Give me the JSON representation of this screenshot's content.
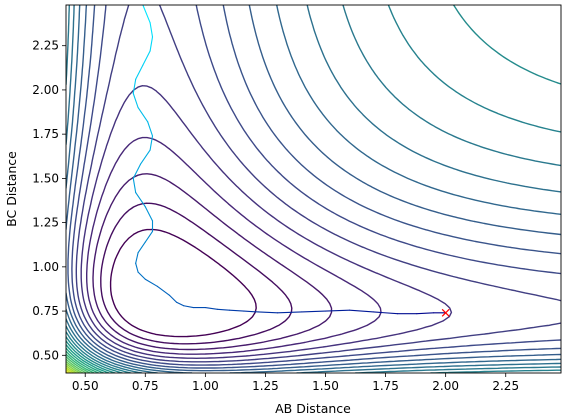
{
  "chart_data": {
    "type": "contour",
    "title": "",
    "xlabel": "AB Distance",
    "ylabel": "BC Distance",
    "xlim": [
      0.42,
      2.48
    ],
    "ylim": [
      0.4,
      2.48
    ],
    "x_ticks": [
      0.5,
      0.75,
      1.0,
      1.25,
      1.5,
      1.75,
      2.0,
      2.25
    ],
    "x_tick_labels": [
      "0.50",
      "0.75",
      "1.00",
      "1.25",
      "1.50",
      "1.75",
      "2.00",
      "2.25"
    ],
    "y_ticks": [
      0.5,
      0.75,
      1.0,
      1.25,
      1.5,
      1.75,
      2.0,
      2.25
    ],
    "y_tick_labels": [
      "0.50",
      "0.75",
      "1.00",
      "1.25",
      "1.50",
      "1.75",
      "2.00",
      "2.25"
    ],
    "grid": false,
    "colormap": "viridis",
    "contour_levels": 28,
    "trajectory": {
      "color_start": "#00e5ff",
      "color_end": "#00008b",
      "x": [
        0.74,
        0.77,
        0.78,
        0.77,
        0.74,
        0.71,
        0.7,
        0.72,
        0.76,
        0.78,
        0.77,
        0.73,
        0.7,
        0.71,
        0.75,
        0.78,
        0.78,
        0.75,
        0.72,
        0.71,
        0.72,
        0.75,
        0.8,
        0.85,
        0.88,
        0.91,
        0.95,
        1.0,
        1.05,
        1.1,
        1.16,
        1.22,
        1.3,
        1.4,
        1.5,
        1.6,
        1.7,
        1.8,
        1.88,
        1.95,
        2.0
      ],
      "y": [
        2.48,
        2.38,
        2.3,
        2.22,
        2.14,
        2.06,
        1.98,
        1.9,
        1.82,
        1.74,
        1.66,
        1.58,
        1.5,
        1.42,
        1.34,
        1.26,
        1.2,
        1.14,
        1.08,
        1.02,
        0.97,
        0.93,
        0.89,
        0.84,
        0.8,
        0.78,
        0.77,
        0.77,
        0.76,
        0.755,
        0.75,
        0.745,
        0.74,
        0.745,
        0.75,
        0.755,
        0.745,
        0.735,
        0.735,
        0.74,
        0.74
      ]
    },
    "marker": {
      "x": 2.0,
      "y": 0.74,
      "symbol": "x",
      "color": "#ff0000"
    }
  }
}
